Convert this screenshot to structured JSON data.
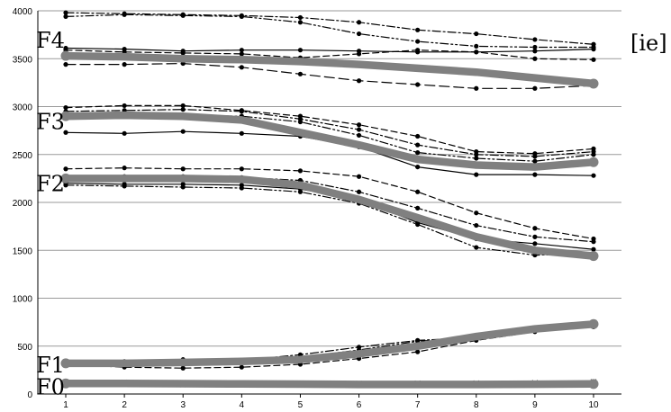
{
  "chart_data": {
    "type": "line",
    "title": "",
    "xlabel": "",
    "ylabel": "",
    "tag": "[ie]",
    "x": [
      1,
      2,
      3,
      4,
      5,
      6,
      7,
      8,
      9,
      10
    ],
    "xlim": [
      1,
      10
    ],
    "ylim": [
      0,
      4000
    ],
    "y_ticks": [
      0,
      500,
      1000,
      1500,
      2000,
      2500,
      3000,
      3500,
      4000
    ],
    "grid": "horizontal",
    "legend": "none",
    "formant_labels": [
      {
        "text": "F4",
        "value": 3700
      },
      {
        "text": "F3",
        "value": 2850
      },
      {
        "text": "F2",
        "value": 2200
      },
      {
        "text": "F1",
        "value": 310
      },
      {
        "text": "F0",
        "value": 80
      }
    ],
    "colors": {
      "thin": "#000000",
      "mean": "#808080",
      "grid": "#9a9a9a",
      "axis": "#000000"
    },
    "series": [
      {
        "group": "F4",
        "style": "dashdot",
        "values": [
          3980,
          3970,
          3960,
          3950,
          3930,
          3880,
          3800,
          3760,
          3700,
          3650
        ]
      },
      {
        "group": "F4",
        "style": "dashdotdot",
        "values": [
          3940,
          3960,
          3950,
          3940,
          3880,
          3760,
          3680,
          3630,
          3620,
          3620
        ]
      },
      {
        "group": "F4",
        "style": "solid",
        "values": [
          3610,
          3600,
          3580,
          3590,
          3590,
          3580,
          3570,
          3570,
          3580,
          3600
        ]
      },
      {
        "group": "F4",
        "style": "dashed",
        "values": [
          3590,
          3570,
          3560,
          3550,
          3510,
          3550,
          3590,
          3570,
          3500,
          3490
        ]
      },
      {
        "group": "F4",
        "style": "longdash",
        "values": [
          3440,
          3440,
          3450,
          3410,
          3340,
          3270,
          3230,
          3190,
          3190,
          3220
        ]
      },
      {
        "group": "F4",
        "style": "mean",
        "values": [
          3530,
          3520,
          3500,
          3490,
          3470,
          3440,
          3400,
          3360,
          3300,
          3240
        ]
      },
      {
        "group": "F3",
        "style": "dashed",
        "values": [
          2990,
          3010,
          3010,
          2960,
          2900,
          2810,
          2690,
          2530,
          2510,
          2560
        ]
      },
      {
        "group": "F3",
        "style": "dashdot",
        "values": [
          2950,
          2960,
          2970,
          2950,
          2870,
          2760,
          2600,
          2500,
          2480,
          2530
        ]
      },
      {
        "group": "F3",
        "style": "dashdotdot",
        "values": [
          2880,
          2900,
          2910,
          2900,
          2840,
          2700,
          2520,
          2460,
          2430,
          2500
        ]
      },
      {
        "group": "F3",
        "style": "solid",
        "values": [
          2730,
          2720,
          2740,
          2720,
          2690,
          2580,
          2370,
          2290,
          2290,
          2280
        ]
      },
      {
        "group": "F3",
        "style": "mean",
        "values": [
          2900,
          2910,
          2900,
          2860,
          2730,
          2600,
          2450,
          2390,
          2370,
          2420
        ]
      },
      {
        "group": "F2",
        "style": "dashed",
        "values": [
          2350,
          2360,
          2350,
          2350,
          2330,
          2270,
          2110,
          1890,
          1730,
          1620
        ]
      },
      {
        "group": "F2",
        "style": "dashdot",
        "values": [
          2270,
          2270,
          2270,
          2260,
          2230,
          2110,
          1940,
          1760,
          1640,
          1590
        ]
      },
      {
        "group": "F2",
        "style": "solid",
        "values": [
          2200,
          2190,
          2190,
          2180,
          2140,
          2030,
          1790,
          1620,
          1570,
          1510
        ]
      },
      {
        "group": "F2",
        "style": "dashdotdot",
        "values": [
          2180,
          2170,
          2160,
          2150,
          2110,
          1990,
          1770,
          1530,
          1450,
          1460
        ]
      },
      {
        "group": "F2",
        "style": "mean",
        "values": [
          2250,
          2250,
          2250,
          2240,
          2180,
          2030,
          1840,
          1640,
          1500,
          1440
        ]
      },
      {
        "group": "F1",
        "style": "dashdot",
        "values": [
          330,
          340,
          360,
          350,
          410,
          490,
          560,
          590,
          660,
          720
        ]
      },
      {
        "group": "F1",
        "style": "dashed",
        "values": [
          310,
          280,
          270,
          280,
          310,
          370,
          440,
          560,
          650,
          700
        ]
      },
      {
        "group": "F1",
        "style": "dashdotdot",
        "values": [
          300,
          310,
          320,
          330,
          380,
          460,
          550,
          590,
          680,
          730
        ]
      },
      {
        "group": "F1",
        "style": "mean",
        "values": [
          320,
          320,
          330,
          340,
          360,
          420,
          500,
          600,
          680,
          730
        ]
      },
      {
        "group": "F0",
        "style": "solid",
        "values": [
          120,
          120,
          115,
          112,
          110,
          108,
          110,
          112,
          115,
          125
        ]
      },
      {
        "group": "F0",
        "style": "dashed",
        "values": [
          105,
          102,
          100,
          100,
          98,
          96,
          95,
          96,
          98,
          100
        ]
      },
      {
        "group": "F0",
        "style": "mean",
        "values": [
          110,
          110,
          108,
          105,
          103,
          100,
          100,
          100,
          102,
          105
        ]
      }
    ]
  }
}
